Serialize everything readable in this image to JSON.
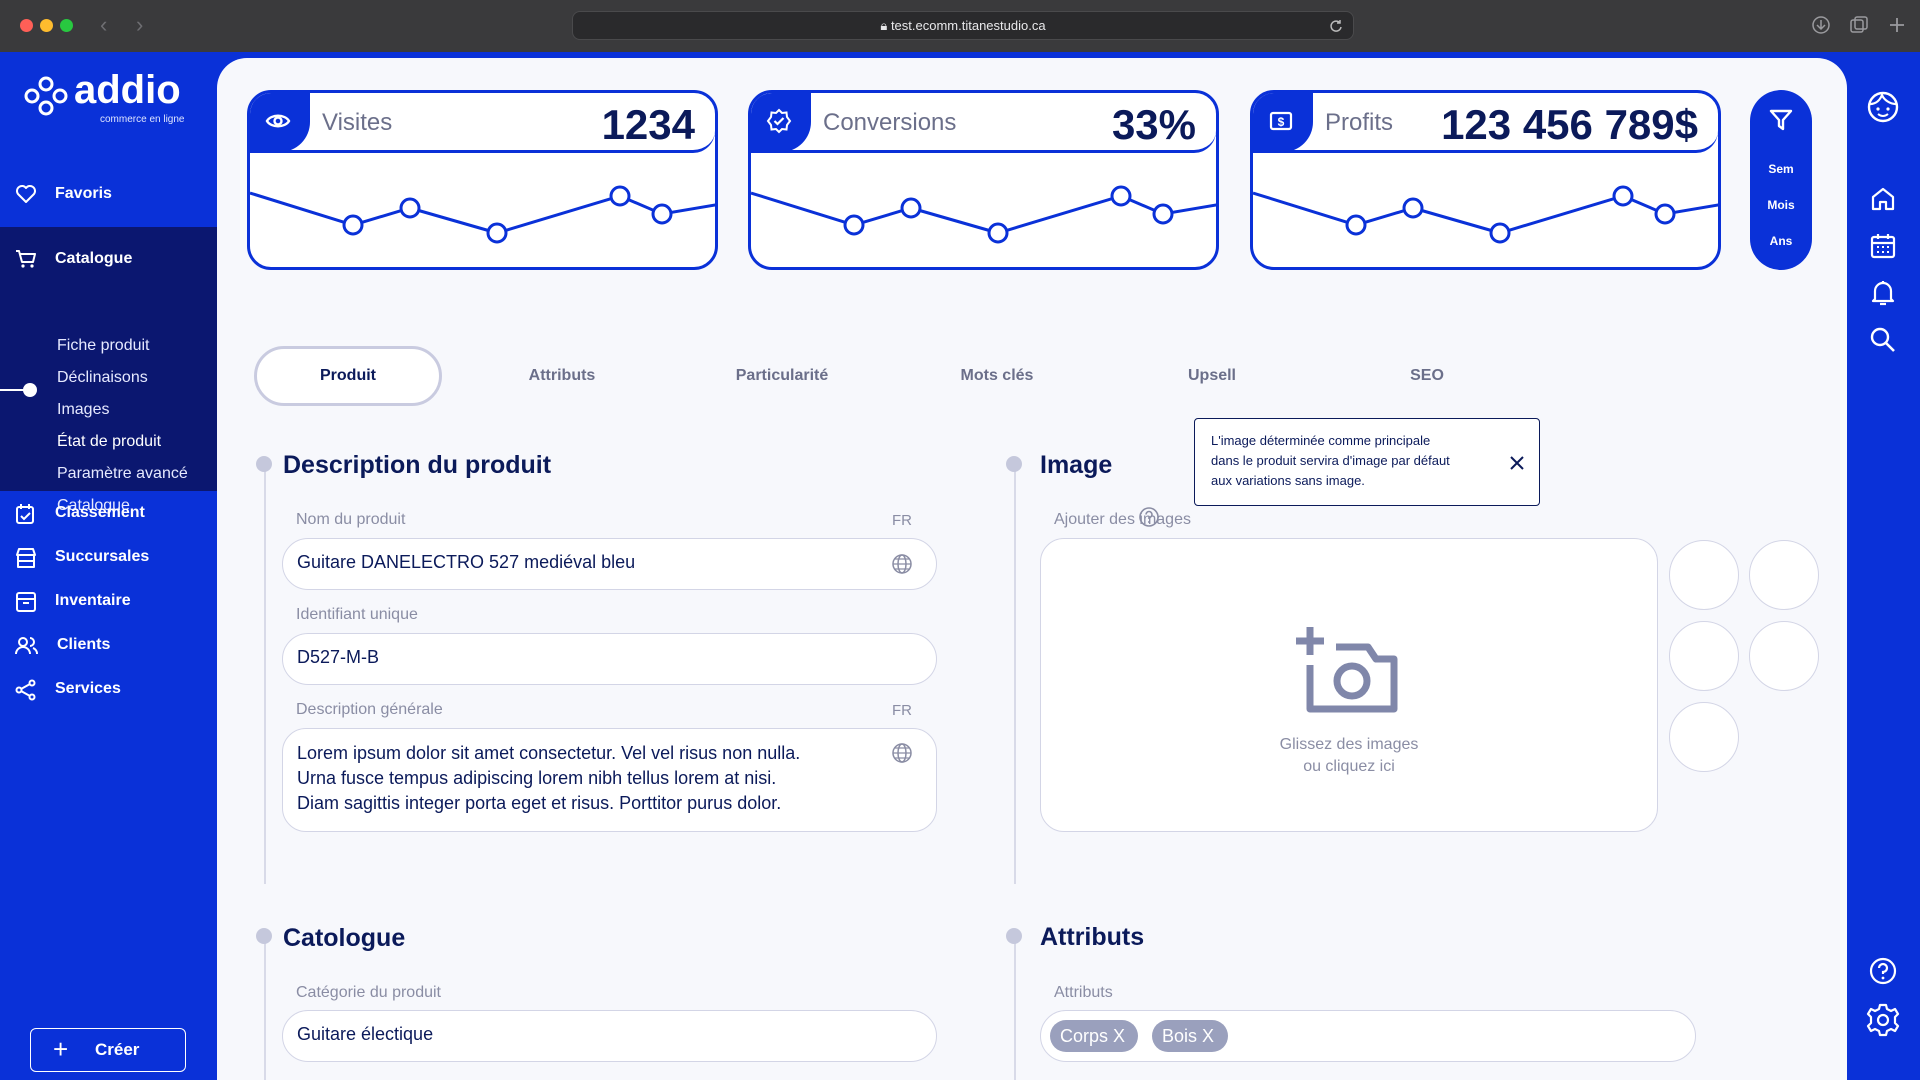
{
  "browser": {
    "url": "test.ecomm.titanestudio.ca",
    "back_icon": "chevron-left-icon",
    "forward_icon": "chevron-right-icon"
  },
  "brand": {
    "name": "addio",
    "tagline": "commerce en ligne"
  },
  "sidebar": {
    "favorites": "Favoris",
    "catalogue": {
      "label": "Catalogue",
      "subitems": [
        "Fiche produit",
        "Déclinaisons",
        "Images",
        "État de produit",
        "Paramètre avancé",
        "Catalogue"
      ],
      "active_subitem": "État de produit"
    },
    "items": [
      {
        "label": "Classement",
        "icon": "ranking-icon"
      },
      {
        "label": "Succursales",
        "icon": "store-icon"
      },
      {
        "label": "Inventaire",
        "icon": "archive-icon"
      },
      {
        "label": "Clients",
        "icon": "users-icon"
      },
      {
        "label": "Services",
        "icon": "share-icon"
      }
    ],
    "create_label": "Créer"
  },
  "stats": [
    {
      "title": "Visites",
      "value": "1234",
      "icon": "eye-icon"
    },
    {
      "title": "Conversions",
      "value": "33%",
      "icon": "badge-check-icon"
    },
    {
      "title": "Profits",
      "value": "123 456 789$",
      "icon": "money-icon"
    }
  ],
  "filter": {
    "icon": "filter-icon",
    "options": [
      "Sem",
      "Mois",
      "Ans"
    ]
  },
  "tabs": [
    "Produit",
    "Attributs",
    "Particularité",
    "Mots clés",
    "Upsell",
    "SEO"
  ],
  "active_tab": "Produit",
  "description": {
    "title": "Description du produit",
    "name_label": "Nom du produit",
    "name_lang": "FR",
    "name_value": "Guitare DANELECTRO 527 mediéval bleu",
    "id_label": "Identifiant unique",
    "id_value": "D527-M-B",
    "desc_label": "Description générale",
    "desc_lang": "FR",
    "desc_lines": [
      "Lorem ipsum dolor sit amet consectetur. Vel vel risus non nulla.",
      "Urna fusce tempus adipiscing lorem nibh tellus lorem at nisi.",
      "Diam sagittis integer porta eget et risus. Porttitor purus dolor."
    ]
  },
  "image": {
    "title": "Image",
    "add_label": "Ajouter des images",
    "tooltip_lines": [
      "L'image déterminée comme principale",
      "dans le produit servira d'image par défaut",
      "aux variations sans image."
    ],
    "drop_line1": "Glissez des images",
    "drop_line2": "ou cliquez ici"
  },
  "catalogue": {
    "title": "Catologue",
    "category_label": "Catégorie du produit",
    "category_value": "Guitare électique"
  },
  "attributes": {
    "title": "Attributs",
    "label": "Attributs",
    "chips": [
      "Corps X",
      "Bois X"
    ]
  },
  "colors": {
    "primary": "#0a31d8",
    "navy": "#0b1a5a",
    "panel": "#0b1770"
  }
}
